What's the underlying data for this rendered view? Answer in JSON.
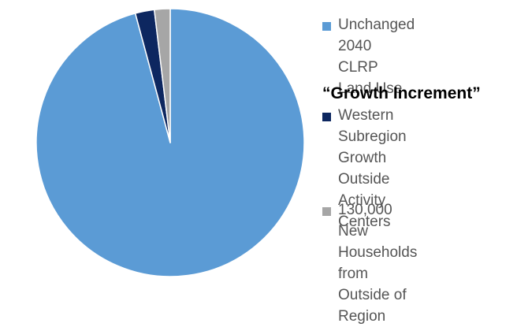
{
  "chart_data": {
    "type": "pie",
    "title": "",
    "slices": [
      {
        "label": "Unchanged\n2040 CLRP Land Use",
        "value": 95.8,
        "color": "#5b9bd5"
      },
      {
        "label": "Western Subregion\nGrowth Outside\nActivity Centers",
        "value": 2.3,
        "color": "#0d2760"
      },
      {
        "label": "130,000 New\nHouseholds from\nOutside of Region",
        "value": 1.9,
        "color": "#a6a6a6"
      }
    ],
    "legend": {
      "placement": "right",
      "group_heading": "“Growth Increment”"
    }
  }
}
